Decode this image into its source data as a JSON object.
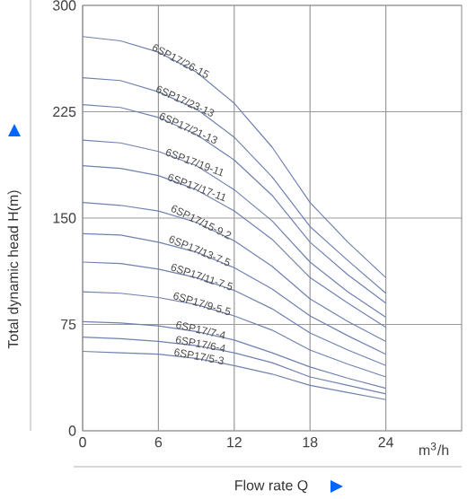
{
  "chart_data": {
    "type": "line",
    "xlabel": "Flow rate Q",
    "ylabel": "Total dynamic head H(m)",
    "annotations": [
      "m$^{3}$/h"
    ],
    "x": [
      0,
      3,
      6,
      9,
      12,
      15,
      18,
      21,
      24
    ],
    "xlim": [
      0,
      30
    ],
    "xticks": [
      0,
      6,
      12,
      18,
      24
    ],
    "ylim": [
      0,
      300
    ],
    "yticks": [
      0,
      75,
      150,
      225,
      300
    ],
    "grid": true,
    "legend": false,
    "marker": "none",
    "line_style": "solid",
    "series": [
      {
        "name": "6SP17/26-15",
        "color": "#7080b0",
        "values": [
          278,
          275,
          267,
          253,
          231,
          200,
          161,
          133,
          108
        ]
      },
      {
        "name": "6SP17/23-13",
        "color": "#7080b0",
        "values": [
          249,
          247,
          239,
          227,
          207,
          179,
          144,
          120,
          97
        ]
      },
      {
        "name": "6SP17/21-13",
        "color": "#7080b0",
        "values": [
          230,
          228,
          221,
          209,
          191,
          166,
          133,
          110,
          90
        ]
      },
      {
        "name": "6SP17/19-11",
        "color": "#7080b0",
        "values": [
          205,
          203,
          197,
          187,
          170,
          148,
          119,
          98,
          80
        ]
      },
      {
        "name": "6SP17/17-11",
        "color": "#7080b0",
        "values": [
          187,
          185,
          180,
          170,
          155,
          135,
          108,
          90,
          73
        ]
      },
      {
        "name": "6SP17/15-9.2",
        "color": "#7080b0",
        "values": [
          161,
          159,
          155,
          147,
          134,
          116,
          93,
          77,
          63
        ]
      },
      {
        "name": "6SP17/13-7.5",
        "color": "#7080b0",
        "values": [
          139,
          138,
          133,
          126,
          115,
          100,
          81,
          67,
          54
        ]
      },
      {
        "name": "6SP17/11-7.5",
        "color": "#7080b0",
        "values": [
          119,
          118,
          114,
          108,
          99,
          86,
          69,
          57,
          46
        ]
      },
      {
        "name": "6SP17/9-5.5",
        "color": "#7080b0",
        "values": [
          98,
          97,
          94,
          89,
          81,
          71,
          57,
          47,
          38
        ]
      },
      {
        "name": "6SP17/7-4",
        "color": "#7080b0",
        "values": [
          77,
          76,
          74,
          70,
          64,
          55,
          45,
          37,
          30
        ]
      },
      {
        "name": "6SP17/6-4",
        "color": "#7080b0",
        "values": [
          66,
          65,
          63,
          60,
          55,
          48,
          38,
          32,
          26
        ]
      },
      {
        "name": "6SP17/5-3",
        "color": "#7080b0",
        "values": [
          56,
          55,
          54,
          51,
          46,
          40,
          32,
          27,
          22
        ]
      }
    ]
  }
}
